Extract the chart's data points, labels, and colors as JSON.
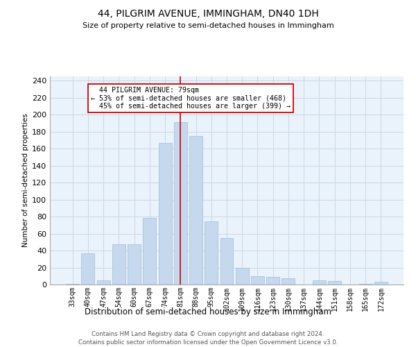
{
  "title1": "44, PILGRIM AVENUE, IMMINGHAM, DN40 1DH",
  "title2": "Size of property relative to semi-detached houses in Immingham",
  "xlabel": "Distribution of semi-detached houses by size in Immingham",
  "ylabel": "Number of semi-detached properties",
  "footer1": "Contains HM Land Registry data © Crown copyright and database right 2024.",
  "footer2": "Contains public sector information licensed under the Open Government Licence v3.0.",
  "bar_labels": [
    "33sqm",
    "40sqm",
    "47sqm",
    "54sqm",
    "60sqm",
    "67sqm",
    "74sqm",
    "81sqm",
    "88sqm",
    "95sqm",
    "102sqm",
    "109sqm",
    "116sqm",
    "123sqm",
    "130sqm",
    "137sqm",
    "144sqm",
    "151sqm",
    "158sqm",
    "165sqm",
    "172sqm"
  ],
  "bar_values": [
    1,
    37,
    5,
    47,
    47,
    78,
    167,
    191,
    175,
    74,
    55,
    20,
    10,
    9,
    7,
    0,
    5,
    4,
    0,
    1,
    3
  ],
  "bar_color": "#c5d8ed",
  "bar_edge_color": "#a0bcd6",
  "grid_color": "#c8d8e8",
  "bg_color": "#eaf2fb",
  "property_label": "44 PILGRIM AVENUE: 79sqm",
  "pct_smaller": 53,
  "pct_smaller_count": 468,
  "pct_larger": 45,
  "pct_larger_count": 399,
  "vline_bin_index": 7,
  "vline_color": "#cc0000",
  "annotation_box_color": "#ffffff",
  "annotation_box_edge": "#cc0000",
  "ylim": [
    0,
    245
  ],
  "yticks": [
    0,
    20,
    40,
    60,
    80,
    100,
    120,
    140,
    160,
    180,
    200,
    220,
    240
  ]
}
